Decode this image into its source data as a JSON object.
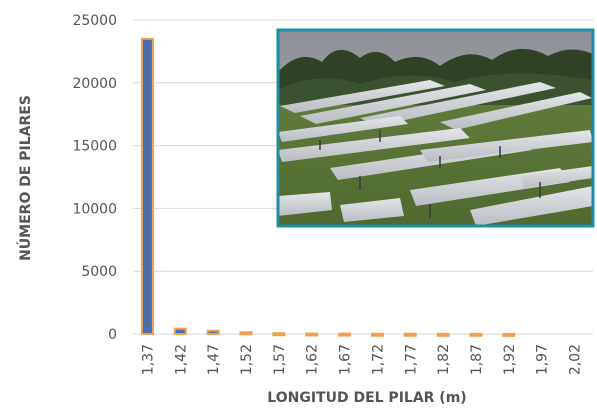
{
  "chart_data": {
    "type": "bar",
    "title": "",
    "xlabel": "LONGITUD DEL PILAR (m)",
    "ylabel": "NÚMERO DE PILARES",
    "categories": [
      "1,37",
      "1,42",
      "1,47",
      "1,52",
      "1,57",
      "1,62",
      "1,67",
      "1,72",
      "1,77",
      "1,82",
      "1,87",
      "1,92",
      "1,97",
      "2,02"
    ],
    "values": [
      23500,
      420,
      260,
      140,
      60,
      40,
      30,
      20,
      20,
      15,
      15,
      10,
      0,
      0
    ],
    "ylim": [
      0,
      25000
    ],
    "yticks": [
      "0",
      "5000",
      "10000",
      "15000",
      "20000",
      "25000"
    ],
    "grid": true,
    "legend": "none",
    "colors": {
      "bar_fill": "#4a6fae",
      "bar_outline": "#f0a050",
      "grid": "#d9d9d9",
      "text": "#555555",
      "inset_frame": "#1c8fa1"
    }
  },
  "inset": {
    "description_icon": "solar-field-photo"
  }
}
